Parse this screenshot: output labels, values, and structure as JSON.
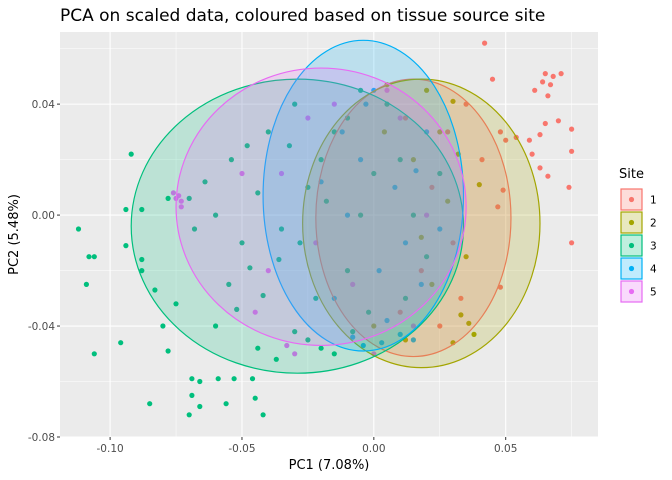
{
  "chart_data": {
    "type": "scatter",
    "title": "PCA on scaled data, coloured based on tissue source site",
    "xlabel": "PC1 (7.08%)",
    "ylabel": "PC2 (5.48%)",
    "xlim": [
      -0.119,
      0.085
    ],
    "ylim": [
      -0.08,
      0.066
    ],
    "x_ticks": [
      {
        "value": -0.1,
        "label": "-0.10"
      },
      {
        "value": -0.05,
        "label": "-0.05"
      },
      {
        "value": 0.0,
        "label": "0.00"
      },
      {
        "value": 0.05,
        "label": "0.05"
      }
    ],
    "y_ticks": [
      {
        "value": -0.08,
        "label": "-0.08"
      },
      {
        "value": -0.04,
        "label": "-0.04"
      },
      {
        "value": 0.0,
        "label": "0.00"
      },
      {
        "value": 0.04,
        "label": "0.04"
      }
    ],
    "grid": true,
    "legend": {
      "title": "Site",
      "placement": "right"
    },
    "series": [
      {
        "name": "1",
        "color": "#F8766D",
        "ellipse": {
          "cx": 0.015,
          "cy": -0.001,
          "rx": 0.037,
          "ry": 0.05
        },
        "points": [
          [
            0.042,
            0.062
          ],
          [
            0.045,
            0.049
          ],
          [
            0.065,
            0.051
          ],
          [
            0.068,
            0.05
          ],
          [
            0.071,
            0.051
          ],
          [
            0.064,
            0.048
          ],
          [
            0.067,
            0.047
          ],
          [
            0.061,
            0.045
          ],
          [
            0.066,
            0.043
          ],
          [
            0.07,
            0.034
          ],
          [
            0.065,
            0.033
          ],
          [
            0.063,
            0.029
          ],
          [
            0.059,
            0.027
          ],
          [
            0.075,
            0.031
          ],
          [
            0.075,
            0.023
          ],
          [
            0.06,
            0.022
          ],
          [
            0.063,
            0.017
          ],
          [
            0.066,
            0.014
          ],
          [
            0.074,
            0.01
          ],
          [
            0.075,
            -0.01
          ],
          [
            0.05,
            0.027
          ],
          [
            0.054,
            0.028
          ],
          [
            0.048,
            0.03
          ],
          [
            0.049,
            0.009
          ],
          [
            0.047,
            0.003
          ],
          [
            0.048,
            -0.026
          ],
          [
            0.041,
            0.02
          ],
          [
            0.035,
            0.04
          ],
          [
            0.028,
            0.03
          ],
          [
            0.022,
            0.01
          ],
          [
            0.03,
            -0.01
          ],
          [
            0.018,
            -0.02
          ],
          [
            0.012,
            0.035
          ],
          [
            0.033,
            -0.03
          ],
          [
            0.025,
            -0.04
          ],
          [
            0.01,
            -0.035
          ]
        ]
      },
      {
        "name": "2",
        "color": "#A3A500",
        "ellipse": {
          "cx": 0.018,
          "cy": -0.003,
          "rx": 0.045,
          "ry": 0.052
        },
        "points": [
          [
            0.038,
            -0.043
          ],
          [
            0.03,
            -0.046
          ],
          [
            0.036,
            -0.039
          ],
          [
            0.033,
            -0.036
          ],
          [
            0.03,
            0.041
          ],
          [
            0.02,
            0.045
          ],
          [
            0.005,
            0.047
          ],
          [
            0.04,
            0.011
          ],
          [
            0.012,
            -0.045
          ],
          [
            0.028,
            0.005
          ],
          [
            0.015,
            0.02
          ],
          [
            0.022,
            -0.025
          ],
          [
            0.035,
            -0.015
          ],
          [
            0.004,
            0.03
          ],
          [
            0.025,
            0.03
          ],
          [
            0.0,
            -0.04
          ],
          [
            0.032,
            0.022
          ],
          [
            0.018,
            -0.008
          ]
        ]
      },
      {
        "name": "3",
        "color": "#00BF7D",
        "ellipse": {
          "cx": -0.029,
          "cy": -0.004,
          "rx": 0.063,
          "ry": 0.053
        },
        "points": [
          [
            -0.112,
            -0.005
          ],
          [
            -0.108,
            -0.015
          ],
          [
            -0.106,
            -0.015
          ],
          [
            -0.109,
            -0.025
          ],
          [
            -0.106,
            -0.05
          ],
          [
            -0.092,
            0.022
          ],
          [
            -0.094,
            0.002
          ],
          [
            -0.094,
            -0.011
          ],
          [
            -0.088,
            0.002
          ],
          [
            -0.088,
            -0.016
          ],
          [
            -0.088,
            -0.02
          ],
          [
            -0.096,
            -0.046
          ],
          [
            -0.083,
            -0.027
          ],
          [
            -0.08,
            -0.04
          ],
          [
            -0.078,
            -0.049
          ],
          [
            -0.085,
            -0.068
          ],
          [
            -0.078,
            0.006
          ],
          [
            -0.075,
            -0.032
          ],
          [
            -0.069,
            -0.059
          ],
          [
            -0.069,
            -0.065
          ],
          [
            -0.07,
            -0.072
          ],
          [
            -0.066,
            -0.069
          ],
          [
            -0.066,
            -0.06
          ],
          [
            -0.059,
            -0.059
          ],
          [
            -0.056,
            -0.068
          ],
          [
            -0.053,
            -0.059
          ],
          [
            -0.046,
            -0.059
          ],
          [
            -0.045,
            -0.066
          ],
          [
            -0.042,
            -0.072
          ],
          [
            -0.044,
            -0.048
          ],
          [
            -0.037,
            -0.052
          ],
          [
            -0.047,
            -0.019
          ],
          [
            -0.042,
            -0.029
          ],
          [
            -0.036,
            -0.016
          ],
          [
            -0.06,
            -0.04
          ],
          [
            -0.055,
            -0.025
          ],
          [
            -0.05,
            -0.01
          ],
          [
            -0.068,
            -0.005
          ],
          [
            -0.064,
            0.012
          ],
          [
            -0.06,
            0.0
          ],
          [
            -0.054,
            0.02
          ],
          [
            -0.07,
            0.006
          ],
          [
            -0.048,
            0.025
          ],
          [
            -0.04,
            0.03
          ],
          [
            -0.03,
            0.04
          ],
          [
            -0.03,
            -0.042
          ],
          [
            -0.025,
            -0.045
          ],
          [
            -0.02,
            -0.048
          ],
          [
            -0.015,
            -0.05
          ],
          [
            -0.035,
            -0.005
          ],
          [
            -0.025,
            0.01
          ],
          [
            -0.02,
            0.02
          ],
          [
            -0.015,
            0.03
          ],
          [
            -0.01,
            0.035
          ],
          [
            -0.005,
            0.0
          ],
          [
            0.0,
            0.015
          ],
          [
            -0.01,
            -0.02
          ],
          [
            -0.022,
            -0.03
          ],
          [
            -0.002,
            -0.035
          ],
          [
            0.005,
            0.04
          ],
          [
            0.01,
            0.02
          ],
          [
            0.015,
            0.0
          ],
          [
            0.02,
            -0.015
          ],
          [
            0.012,
            -0.03
          ],
          [
            -0.032,
            0.025
          ],
          [
            -0.044,
            0.008
          ],
          [
            -0.052,
            -0.034
          ],
          [
            -0.028,
            -0.01
          ],
          [
            -0.005,
            0.045
          ],
          [
            0.025,
            0.015
          ],
          [
            -0.008,
            -0.042
          ],
          [
            -0.018,
            0.005
          ]
        ]
      },
      {
        "name": "4",
        "color": "#00B0F6",
        "ellipse": {
          "cx": -0.004,
          "cy": 0.007,
          "rx": 0.038,
          "ry": 0.056
        },
        "points": [
          [
            -0.004,
            -0.047
          ],
          [
            -0.008,
            -0.044
          ],
          [
            0.003,
            -0.046
          ],
          [
            0.01,
            -0.043
          ],
          [
            0.015,
            -0.045
          ],
          [
            0.005,
            -0.038
          ],
          [
            -0.003,
            0.04
          ],
          [
            0.0,
            0.045
          ],
          [
            -0.012,
            0.03
          ],
          [
            -0.005,
            0.02
          ],
          [
            0.008,
            0.01
          ],
          [
            0.012,
            -0.01
          ],
          [
            -0.01,
            0.0
          ],
          [
            0.018,
            -0.025
          ],
          [
            0.02,
            0.03
          ],
          [
            -0.02,
            0.012
          ],
          [
            0.002,
            -0.02
          ],
          [
            0.016,
            0.016
          ],
          [
            -0.015,
            -0.03
          ],
          [
            0.025,
            -0.005
          ]
        ]
      },
      {
        "name": "5",
        "color": "#E76BF3",
        "ellipse": {
          "cx": -0.02,
          "cy": 0.003,
          "rx": 0.055,
          "ry": 0.05
        },
        "points": [
          [
            -0.076,
            0.008
          ],
          [
            -0.075,
            0.006
          ],
          [
            -0.073,
            0.005
          ],
          [
            -0.073,
            0.003
          ],
          [
            -0.074,
            0.007
          ],
          [
            -0.033,
            -0.047
          ],
          [
            -0.03,
            -0.05
          ],
          [
            -0.025,
            0.035
          ],
          [
            -0.015,
            0.04
          ],
          [
            -0.05,
            0.015
          ],
          [
            -0.04,
            -0.02
          ],
          [
            0.0,
            -0.05
          ],
          [
            0.01,
            0.035
          ],
          [
            -0.008,
            -0.025
          ],
          [
            0.02,
            0.0
          ],
          [
            -0.035,
            0.015
          ],
          [
            -0.045,
            -0.035
          ],
          [
            0.005,
            0.045
          ],
          [
            -0.022,
            -0.01
          ],
          [
            0.015,
            -0.04
          ]
        ]
      }
    ]
  }
}
